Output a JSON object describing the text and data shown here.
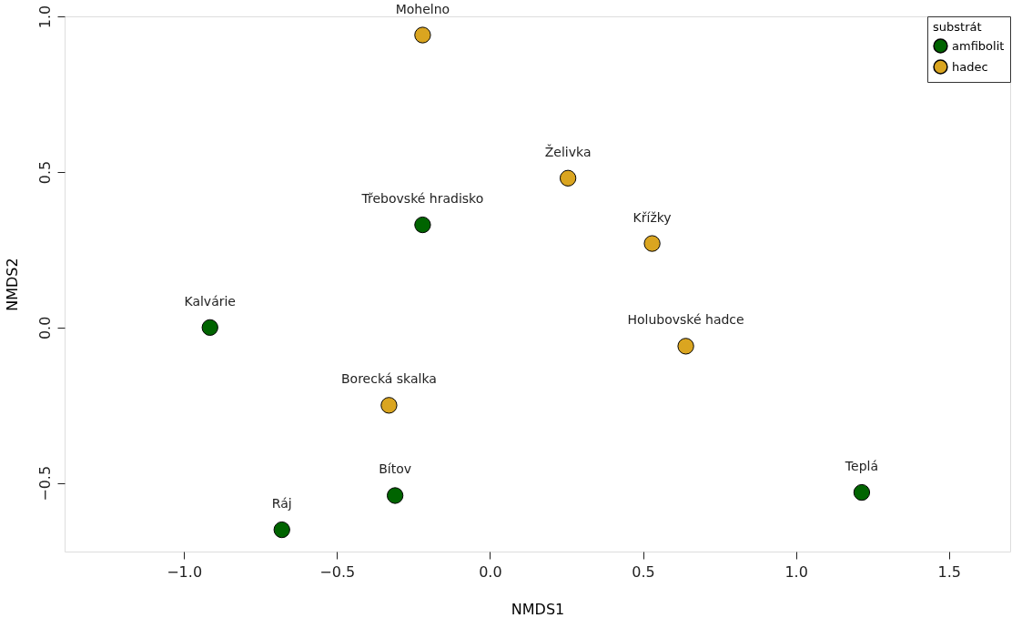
{
  "chart_data": {
    "type": "scatter",
    "xlabel": "NMDS1",
    "ylabel": "NMDS2",
    "legend_title": "substrát",
    "legend": "top right",
    "grid": false,
    "marker": "circle",
    "xlim": [
      -1.39,
      1.7
    ],
    "ylim": [
      -0.72,
      1.0
    ],
    "xticks": [
      {
        "value": -1.0,
        "label": "−1.0"
      },
      {
        "value": -0.5,
        "label": "−0.5"
      },
      {
        "value": 0.0,
        "label": "0.0"
      },
      {
        "value": 0.5,
        "label": "0.5"
      },
      {
        "value": 1.0,
        "label": "1.0"
      },
      {
        "value": 1.5,
        "label": "1.5"
      }
    ],
    "yticks": [
      {
        "value": -0.5,
        "label": "−0.5"
      },
      {
        "value": 0.0,
        "label": "0.0"
      },
      {
        "value": 0.5,
        "label": "0.5"
      },
      {
        "value": 1.0,
        "label": "1.0"
      }
    ],
    "series": [
      {
        "name": "amfibolit",
        "color": "#006400",
        "x": [
          -0.22,
          -0.915,
          -0.31,
          -0.68,
          1.215
        ],
        "values": [
          0.33,
          0.0,
          -0.54,
          -0.65,
          -0.53
        ]
      },
      {
        "name": "hadec",
        "color": "#daa520",
        "x": [
          -0.22,
          0.255,
          0.53,
          0.64,
          -0.33
        ],
        "values": [
          0.94,
          0.48,
          0.27,
          -0.06,
          -0.25
        ]
      }
    ],
    "annotations": [
      {
        "text": "Mohelno",
        "x": -0.22,
        "y": 0.94
      },
      {
        "text": "Želivka",
        "x": 0.255,
        "y": 0.48
      },
      {
        "text": "Třebovské hradisko",
        "x": -0.22,
        "y": 0.33
      },
      {
        "text": "Křížky",
        "x": 0.53,
        "y": 0.27
      },
      {
        "text": "Kalvárie",
        "x": -0.915,
        "y": 0.0
      },
      {
        "text": "Holubovské hadce",
        "x": 0.64,
        "y": -0.06
      },
      {
        "text": "Borecká skalka",
        "x": -0.33,
        "y": -0.25
      },
      {
        "text": "Bítov",
        "x": -0.31,
        "y": -0.54
      },
      {
        "text": "Ráj",
        "x": -0.68,
        "y": -0.65
      },
      {
        "text": "Teplá",
        "x": 1.215,
        "y": -0.53
      }
    ]
  }
}
